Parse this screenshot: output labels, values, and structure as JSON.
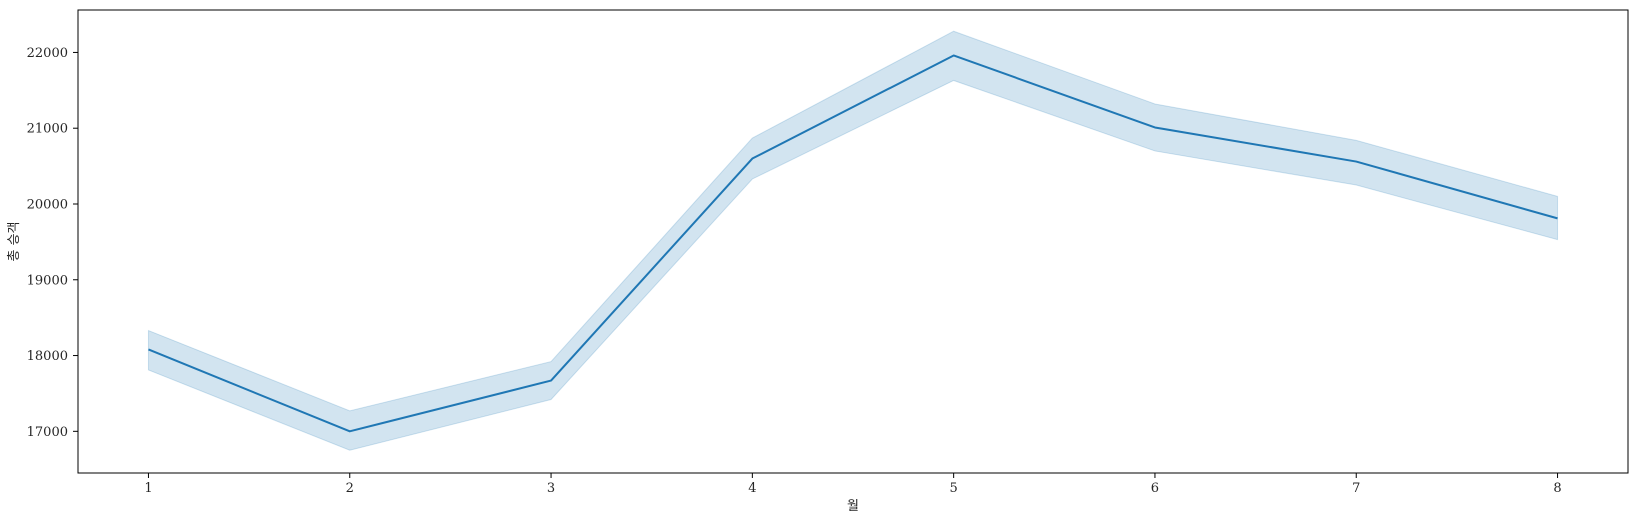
{
  "chart_data": {
    "type": "line",
    "title": "",
    "xlabel": "월",
    "ylabel": "총 승객",
    "x": [
      1,
      2,
      3,
      4,
      5,
      6,
      7,
      8
    ],
    "series": [
      {
        "values": [
          18080,
          17000,
          17670,
          20600,
          21960,
          21010,
          20560,
          19810
        ],
        "ci_lower": [
          17810,
          16750,
          17420,
          20330,
          21630,
          20700,
          20250,
          19530
        ],
        "ci_upper": [
          18330,
          17270,
          17920,
          20870,
          22280,
          21320,
          20840,
          20100
        ]
      }
    ],
    "xlim": [
      0.65,
      8.35
    ],
    "ylim": [
      16450,
      22560
    ],
    "xticks": [
      "1",
      "2",
      "3",
      "4",
      "5",
      "6",
      "7",
      "8"
    ],
    "yticks": [
      "17000",
      "18000",
      "19000",
      "20000",
      "21000",
      "22000"
    ],
    "grid": false,
    "legend": "none",
    "colors": {
      "line": "#1f77b4",
      "band": "#1f77b4"
    }
  }
}
